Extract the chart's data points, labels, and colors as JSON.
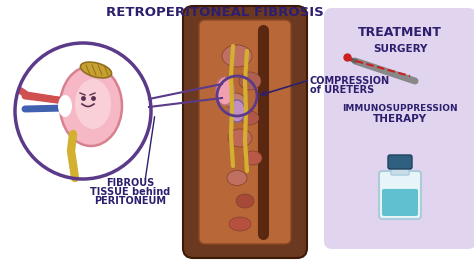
{
  "title": "RETROPERITONEAL FIBROSIS",
  "title_color": "#2d1f6e",
  "bg_color": "#ffffff",
  "left_circle_edge": "#5c3a8a",
  "kidney_color": "#f5b8c4",
  "kidney_outline": "#d98090",
  "kidney_inner": "#f9d0d8",
  "fibrous_label_1": "FIBROUS",
  "fibrous_label_2": "TISSUE behind",
  "fibrous_label_3": "PERITONEUM",
  "compression_label_1": "COMPRESSION",
  "compression_label_2": "of URETERS",
  "treatment_bg": "#e0d4ef",
  "treatment_title": "TREATMENT",
  "surgery_label": "SURGERY",
  "immunosuppression_label_1": "IMMUNOSUPPRESSION",
  "immunosuppression_label_2": "THERAPY",
  "label_color": "#2d1f6e",
  "body_skin_dark": "#6b3820",
  "body_skin_mid": "#8b4a28",
  "body_inner_color": "#b86838",
  "body_cavity_color": "#c8784a",
  "kidney_body_color": "#c87050",
  "connect_line_color": "#5c3a8a",
  "ureter_color": "#d4b030",
  "bandage_color": "#c8a030",
  "bandage_outline": "#907020",
  "vessel_red": "#d05050",
  "vessel_blue": "#4060b0",
  "vessel_yellow": "#c8a030",
  "scalpel_color": "#888888",
  "blood_color": "#cc2020",
  "vial_body_color": "#e8f5f8",
  "vial_liquid_color": "#60c0d0",
  "vial_cap_color": "#306080",
  "compress_circle_color": "#5c3a8a",
  "organ_colors": [
    "#c86858",
    "#b85848",
    "#c87060",
    "#d08068",
    "#b84838"
  ],
  "purplish_organ": "#c090c0"
}
